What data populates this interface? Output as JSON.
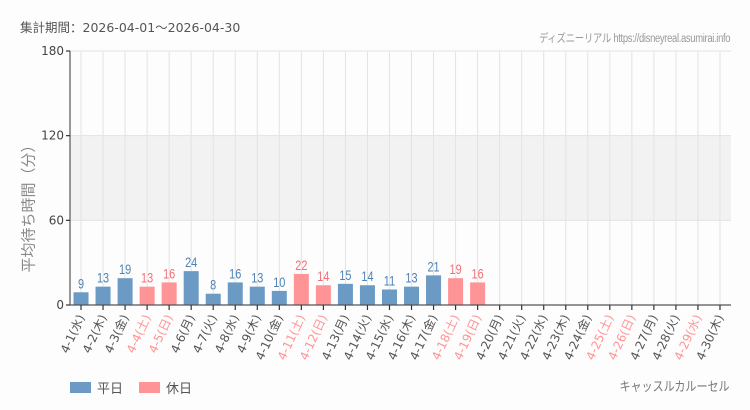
{
  "header": {
    "period_label": "集計期間：2026-04-01〜2026-04-30",
    "credit": "ディズニーリアル https://disneyreal.asumirai.info"
  },
  "colors": {
    "weekday": "#6b9ac4",
    "holiday": "#ff9496",
    "weekday_label": "#4f82b5",
    "holiday_label": "#f36f76",
    "band": "#f2f2f2",
    "grid": "#e3e3e3",
    "axis": "#555555"
  },
  "legend": {
    "weekday": "平日",
    "holiday": "休日"
  },
  "footer": {
    "attraction": "キャッスルカルーセル"
  },
  "chart_data": {
    "type": "bar",
    "title": "",
    "xlabel": "",
    "ylabel": "平均待ち時間（分）",
    "ylim": [
      0,
      180
    ],
    "yticks": [
      0,
      60,
      120,
      180
    ],
    "shaded_band": [
      60,
      120
    ],
    "grid": true,
    "legend_position": "bottom-left",
    "categories": [
      "4-1(水)",
      "4-2(木)",
      "4-3(金)",
      "4-4(土)",
      "4-5(日)",
      "4-6(月)",
      "4-7(火)",
      "4-8(水)",
      "4-9(木)",
      "4-10(金)",
      "4-11(土)",
      "4-12(日)",
      "4-13(月)",
      "4-14(火)",
      "4-15(水)",
      "4-16(木)",
      "4-17(金)",
      "4-18(土)",
      "4-19(日)",
      "4-20(月)",
      "4-21(火)",
      "4-22(水)",
      "4-23(木)",
      "4-24(金)",
      "4-25(土)",
      "4-26(日)",
      "4-27(月)",
      "4-28(火)",
      "4-29(水)",
      "4-30(木)"
    ],
    "day_type": [
      "weekday",
      "weekday",
      "weekday",
      "holiday",
      "holiday",
      "weekday",
      "weekday",
      "weekday",
      "weekday",
      "weekday",
      "holiday",
      "holiday",
      "weekday",
      "weekday",
      "weekday",
      "weekday",
      "weekday",
      "holiday",
      "holiday",
      "weekday",
      "weekday",
      "weekday",
      "weekday",
      "weekday",
      "holiday",
      "holiday",
      "weekday",
      "weekday",
      "holiday",
      "weekday"
    ],
    "values": [
      9,
      13,
      19,
      13,
      16,
      24,
      8,
      16,
      13,
      10,
      22,
      14,
      15,
      14,
      11,
      13,
      21,
      19,
      16,
      null,
      null,
      null,
      null,
      null,
      null,
      null,
      null,
      null,
      null,
      null
    ],
    "series": [
      {
        "name": "平日",
        "color": "#6b9ac4"
      },
      {
        "name": "休日",
        "color": "#ff9496"
      }
    ]
  }
}
